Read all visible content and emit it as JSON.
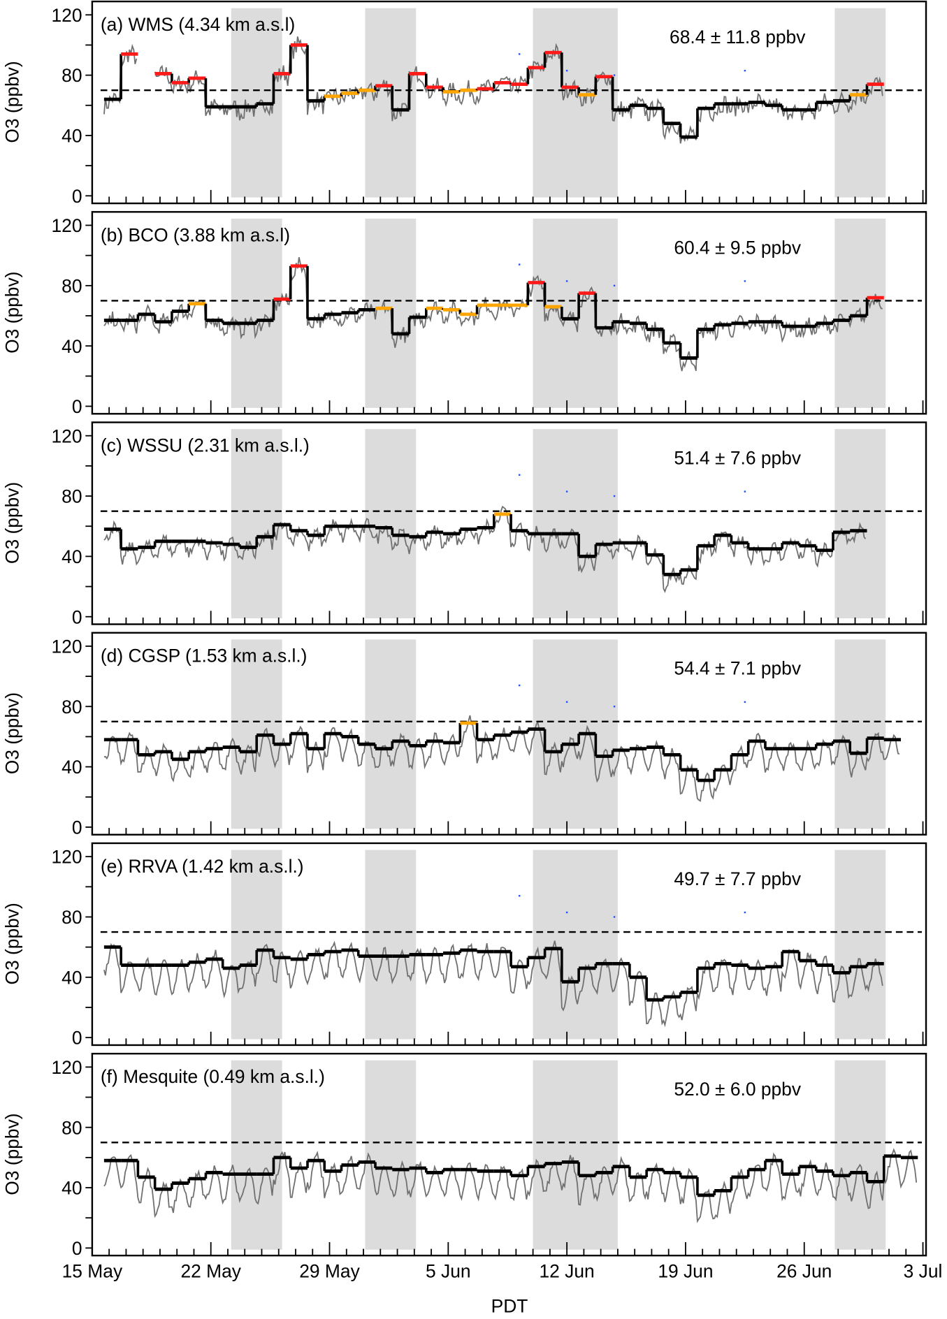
{
  "chart_data": {
    "type": "line",
    "xlabel": "PDT",
    "ylabel": "O3 (ppbv)",
    "ylim": [
      0,
      120
    ],
    "yticks": [
      "0",
      "40",
      "80",
      "120"
    ],
    "xticks": [
      {
        "day": 0,
        "label": "15 May"
      },
      {
        "day": 7,
        "label": "22 May"
      },
      {
        "day": 14,
        "label": "29 May"
      },
      {
        "day": 21,
        "label": "5 Jun"
      },
      {
        "day": 28,
        "label": "12 Jun"
      },
      {
        "day": 35,
        "label": "19 Jun"
      },
      {
        "day": 42,
        "label": "26 Jun"
      },
      {
        "day": 49,
        "label": "3 Jul"
      }
    ],
    "xlim_days": [
      0,
      49.2
    ],
    "threshold_ppbv": 70,
    "shaded_periods_days": [
      [
        8.2,
        11.2
      ],
      [
        16.1,
        19.1
      ],
      [
        26,
        31
      ],
      [
        43.8,
        46.8
      ]
    ],
    "colors": {
      "k": "#000000",
      "r": "#ff1a1a",
      "o": "#ffa500",
      "raw": "#707070",
      "shade": "#dcdcdc",
      "dot": "#1f4fff"
    },
    "step_start_day": 0.7,
    "blue_points": [
      [
        25.2,
        94
      ],
      [
        28.0,
        83
      ],
      [
        30.8,
        80
      ],
      [
        38.5,
        83
      ]
    ],
    "panels": [
      {
        "title": "(a) WMS (4.34 km a.s.l)",
        "stat": "68.4 ± 11.8 ppbv",
        "diurnal_amplitude": 4,
        "noise": 6,
        "dots": true,
        "daily": [
          64,
          94,
          null,
          81,
          75,
          78,
          59,
          59,
          59,
          61,
          81,
          100,
          63,
          66,
          68,
          70,
          73,
          57,
          81,
          72,
          69,
          70,
          71,
          75,
          74,
          85,
          95,
          72,
          67,
          79,
          57,
          60,
          58,
          48,
          39,
          58,
          61,
          61,
          62,
          60,
          57,
          57,
          62,
          63,
          67,
          74
        ],
        "colors": "krxrrrkkkkrrkooorkrroorrrrrrorkkkkkkkkkkkkkkor"
      },
      {
        "title": "(b) BCO (3.88 km a.s.l)",
        "stat": "60.4 ± 9.5 ppbv",
        "diurnal_amplitude": 5,
        "noise": 5,
        "dots": true,
        "daily": [
          57,
          57,
          61,
          56,
          63,
          68,
          57,
          55,
          55,
          57,
          71,
          93,
          58,
          61,
          62,
          64,
          65,
          48,
          59,
          65,
          64,
          61,
          67,
          67,
          67,
          82,
          66,
          58,
          75,
          52,
          56,
          55,
          51,
          42,
          32,
          51,
          54,
          55,
          56,
          56,
          53,
          53,
          55,
          57,
          60,
          72
        ],
        "colors": "kkkkkokkkkrrkkkkokkoooooorokrkkkkkkkkkkkkkkkkr"
      },
      {
        "title": "(c) WSSU (2.31 km a.s.l.)",
        "stat": "51.4 ± 7.6 ppbv",
        "diurnal_amplitude": 8,
        "noise": 4,
        "dots": true,
        "daily": [
          58,
          45,
          46,
          50,
          50,
          50,
          49,
          48,
          46,
          53,
          61,
          57,
          54,
          60,
          60,
          60,
          59,
          54,
          53,
          56,
          55,
          58,
          59,
          68,
          57,
          55,
          55,
          55,
          40,
          48,
          49,
          49,
          41,
          28,
          31,
          47,
          54,
          49,
          45,
          45,
          49,
          47,
          44,
          56,
          57
        ],
        "colors": "kkkkkkkkkkkkkkkkkkkkkkkokkkkkkkkkkkkkkkkkkkkk"
      },
      {
        "title": "(d) CGSP (1.53 km a.s.l.)",
        "stat": "54.4 ± 7.1 ppbv",
        "diurnal_amplitude": 14,
        "noise": 3,
        "dots": true,
        "daily": [
          58,
          58,
          48,
          50,
          45,
          50,
          52,
          53,
          50,
          61,
          55,
          62,
          52,
          62,
          60,
          55,
          52,
          57,
          54,
          57,
          56,
          69,
          58,
          61,
          63,
          65,
          50,
          55,
          62,
          47,
          51,
          52,
          53,
          48,
          38,
          31,
          38,
          48,
          57,
          52,
          52,
          52,
          55,
          57,
          49,
          59,
          58
        ],
        "colors": "kkkkkkkkkkkkkkkkkkkkkokkkkkkkkkkkkkkkkkkkkkkkkk"
      },
      {
        "title": "(e) RRVA (1.42 km a.s.l.)",
        "stat": "49.7 ± 7.7 ppbv",
        "diurnal_amplitude": 17,
        "noise": 3,
        "dots": true,
        "daily": [
          60,
          48,
          48,
          48,
          48,
          50,
          52,
          46,
          48,
          58,
          53,
          52,
          55,
          57,
          58,
          54,
          54,
          54,
          55,
          55,
          56,
          58,
          57,
          57,
          47,
          53,
          59,
          37,
          46,
          49,
          49,
          40,
          25,
          27,
          30,
          46,
          49,
          48,
          46,
          47,
          57,
          51,
          48,
          43,
          47,
          49
        ],
        "colors": "kkkkkkkkkkkkkkkkkkkkkkkkkkkkkkkkkkkkkkkkkkkkkk"
      },
      {
        "title": "(f) Mesquite (0.49 km a.s.l.)",
        "stat": "52.0 ± 6.0 ppbv",
        "diurnal_amplitude": 17,
        "noise": 3,
        "dots": false,
        "daily": [
          58,
          58,
          47,
          39,
          43,
          46,
          50,
          49,
          49,
          49,
          60,
          53,
          58,
          51,
          55,
          57,
          53,
          52,
          53,
          50,
          52,
          52,
          51,
          51,
          48,
          54,
          56,
          57,
          48,
          50,
          54,
          47,
          52,
          50,
          47,
          35,
          38,
          47,
          52,
          58,
          49,
          54,
          51,
          48,
          50,
          44,
          61,
          60
        ],
        "colors": "kkkkkkkkkkkkkkkkkkkkkkkkkkkkkkkkkkkkkkkkkkkkkkkk"
      }
    ]
  }
}
